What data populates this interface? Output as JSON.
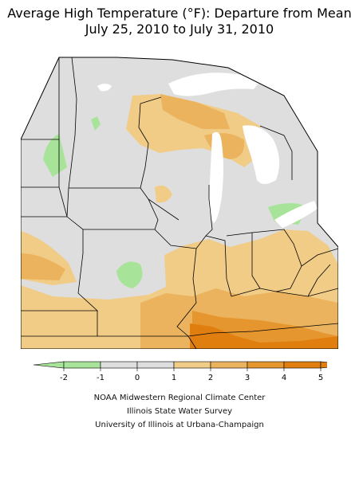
{
  "title": {
    "line1": "Average High Temperature (°F): Departure from Mean",
    "line2": "July 25, 2010 to July 31, 2010"
  },
  "legend": {
    "ticks": [
      "-2",
      "-1",
      "0",
      "1",
      "2",
      "3",
      "4",
      "5"
    ],
    "colors": [
      "#a8e39a",
      "#dedede",
      "#dedede",
      "#f0cc86",
      "#ebb35e",
      "#e6962e",
      "#e07f10"
    ]
  },
  "map_colors": {
    "background": "#dedede",
    "below_minus_1": "#a8e39a",
    "plus_1_to_2": "#f0cc86",
    "plus_2_to_3": "#ebb35e",
    "plus_3_to_4": "#e6962e",
    "plus_4_to_5": "#e07f10",
    "water": "#ffffff",
    "borders": "#000000"
  },
  "credits": {
    "line1": "NOAA Midwestern Regional Climate Center",
    "line2": "Illinois State Water Survey",
    "line3": "University of Illinois at Urbana-Champaign"
  }
}
